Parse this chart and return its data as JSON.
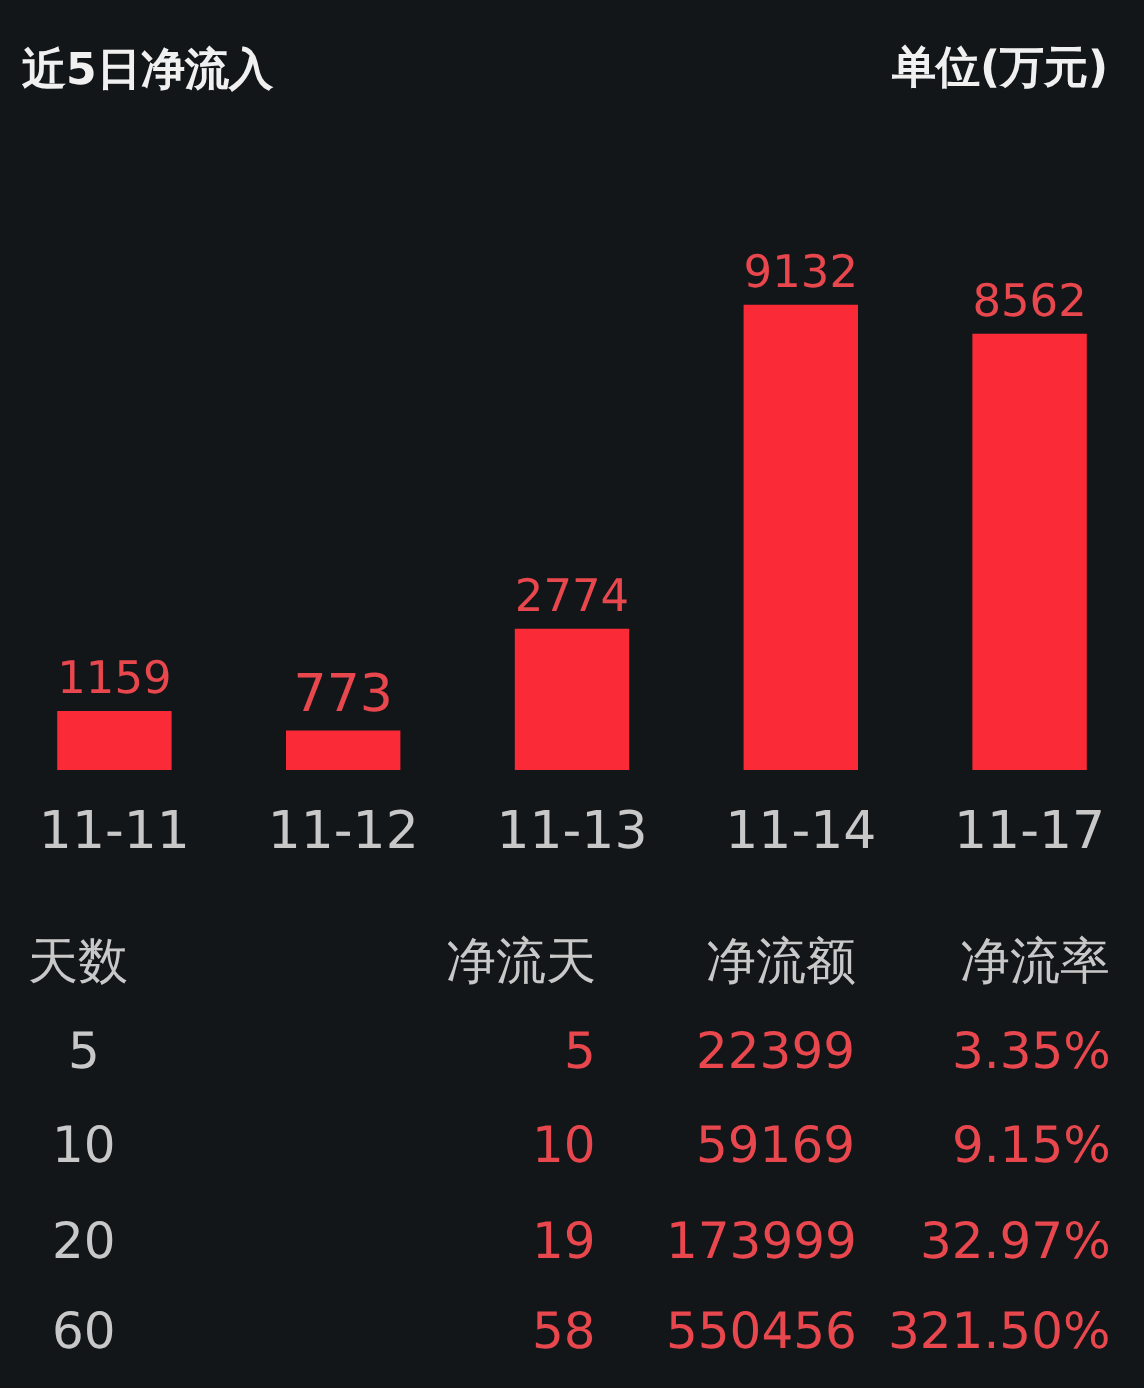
{
  "chart_data": {
    "type": "bar",
    "title": "近5日净流入",
    "subtitle": "单位(万元)",
    "categories": [
      "11-11",
      "11-12",
      "11-13",
      "11-14",
      "11-17"
    ],
    "values": [
      1159,
      773,
      2774,
      9132,
      8562
    ],
    "color": "#fa2a36",
    "data_labels": true,
    "grid": false,
    "legend": false,
    "tick_labels": "x",
    "annotations": [
      "天数",
      "净流天",
      "净流额",
      "净流率",
      "5",
      "5",
      "22399",
      "3.35%",
      "10",
      "10",
      "59169",
      "9.15%",
      "20",
      "19",
      "173999",
      "32.97%",
      "60",
      "58",
      "550456",
      "321.50%"
    ]
  }
}
